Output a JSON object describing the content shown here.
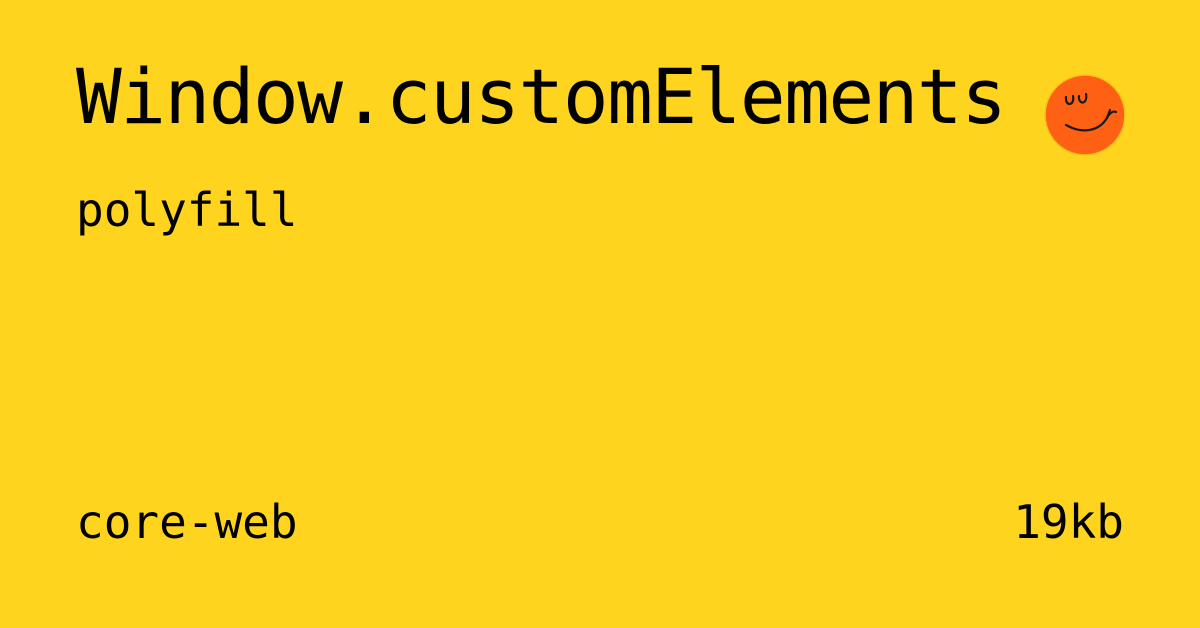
{
  "theme": {
    "background": "#FFD41F",
    "text": "#000000",
    "logo_fill": "#FF6114",
    "logo_stroke": "#1A1A1A"
  },
  "card": {
    "title": "Window.customElements",
    "subtitle": "polyfill",
    "logo_icon": "smiley-face-icon",
    "package": "core-web",
    "size": "19kb"
  }
}
